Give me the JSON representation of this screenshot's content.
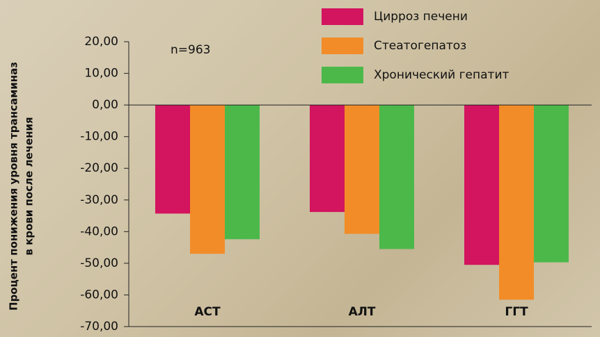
{
  "chart_data": {
    "type": "bar",
    "y_label": [
      "Процент понижения уровня трансаминаз",
      "в крови после лечения"
    ],
    "annotation": "n=963",
    "categories": [
      "АСТ",
      "АЛТ",
      "ГГТ"
    ],
    "series": [
      {
        "name": "Цирроз печени",
        "color": "#d3145f",
        "values": [
          -34.3,
          -33.8,
          -50.5
        ]
      },
      {
        "name": "Стеатогепатоз",
        "color": "#f28c28",
        "values": [
          -47.0,
          -40.7,
          -61.5
        ]
      },
      {
        "name": "Хронический гепатит",
        "color": "#4cb84a",
        "values": [
          -42.4,
          -45.5,
          -49.7
        ]
      }
    ],
    "ylim": [
      -70,
      20
    ],
    "yticks": [
      {
        "value": -70,
        "label": "-70,00"
      },
      {
        "value": -60,
        "label": "-60,00"
      },
      {
        "value": -50,
        "label": "-50,00"
      },
      {
        "value": -40,
        "label": "-40,00"
      },
      {
        "value": -30,
        "label": "-30,00"
      },
      {
        "value": -20,
        "label": "-20,00"
      },
      {
        "value": -10,
        "label": "-10,00"
      },
      {
        "value": 0,
        "label": "0,00"
      },
      {
        "value": 10,
        "label": "10,00"
      },
      {
        "value": 20,
        "label": "20,00"
      }
    ],
    "legend": "top-right"
  }
}
